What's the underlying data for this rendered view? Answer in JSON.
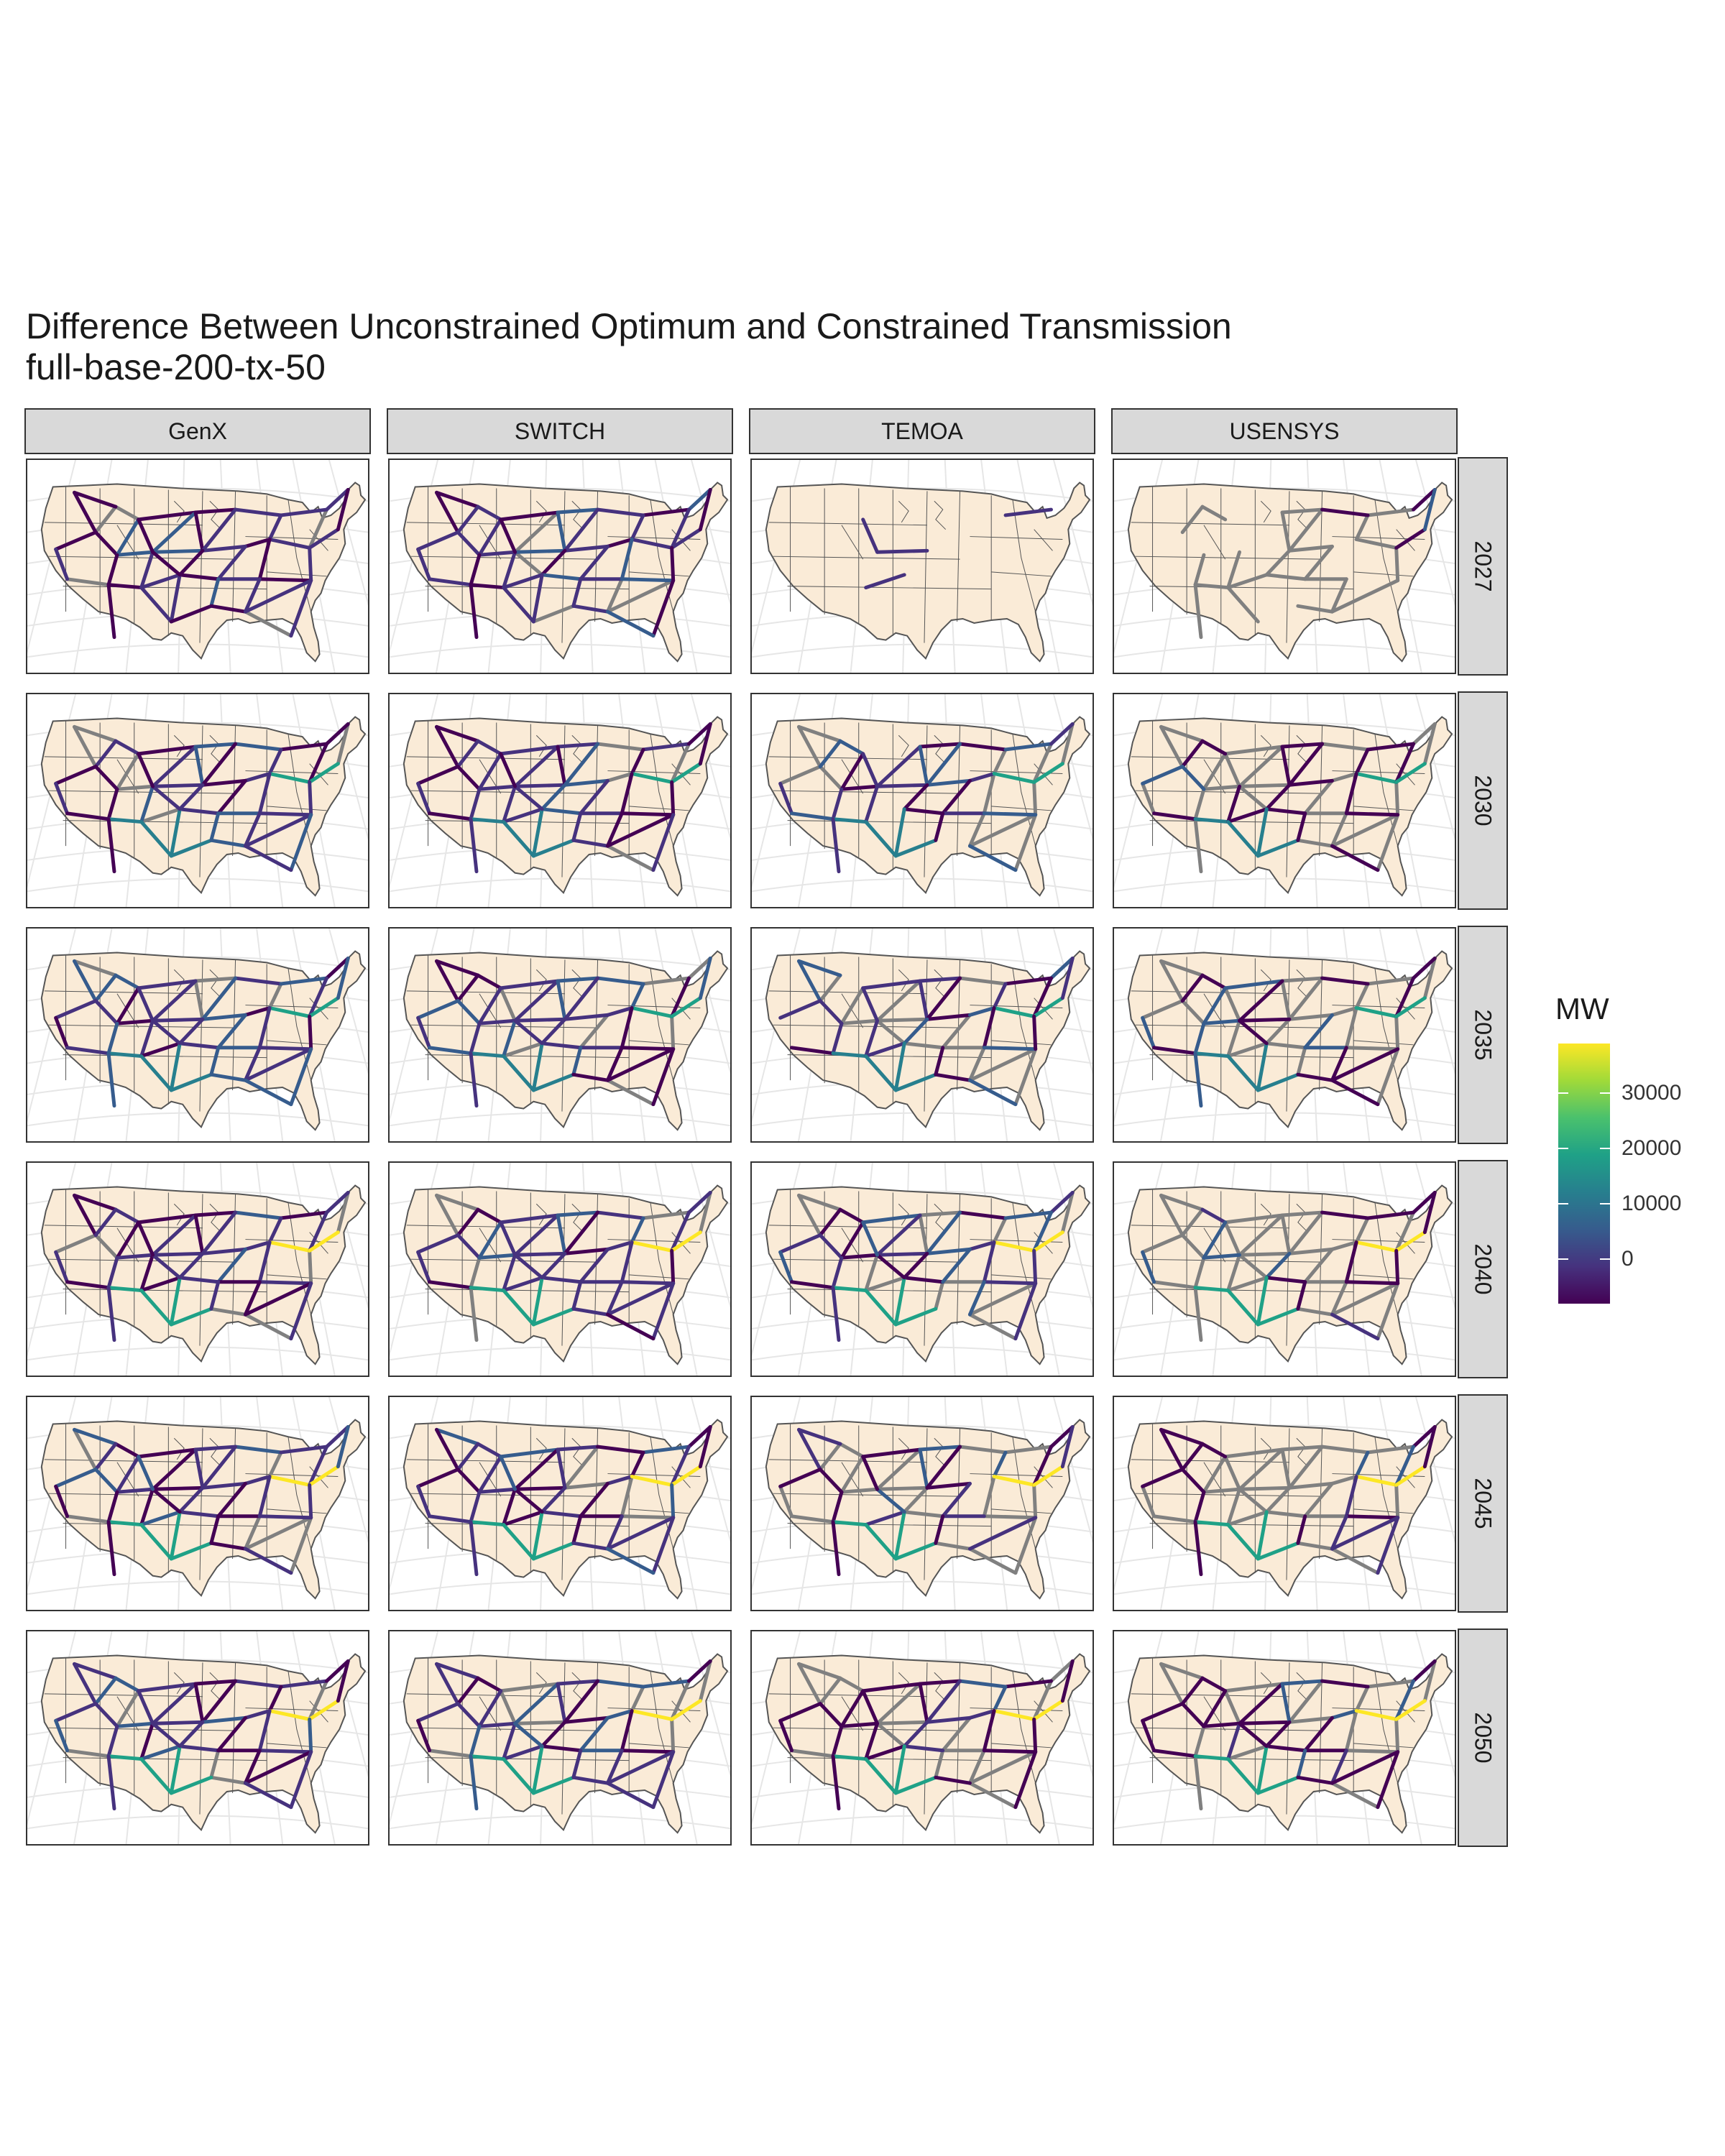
{
  "title": "Difference Between Unconstrained Optimum and Constrained Transmission",
  "subtitle": "full-base-200-tx-50",
  "columns": [
    "GenX",
    "SWITCH",
    "TEMOA",
    "USENSYS"
  ],
  "rows": [
    "2027",
    "2030",
    "2035",
    "2040",
    "2045",
    "2050"
  ],
  "legend": {
    "title": "MW",
    "ticks": [
      "30000",
      "20000",
      "10000",
      "0"
    ],
    "colorscale": [
      "#440154",
      "#46327e",
      "#365c8d",
      "#277f8e",
      "#1fa187",
      "#4ac16d",
      "#a0da39",
      "#fde725"
    ],
    "range": [
      -8000,
      39000
    ],
    "tick_values": [
      30000,
      20000,
      10000,
      0
    ]
  },
  "colors": {
    "land": "#faebd7",
    "border": "#555555",
    "grid": "#e6e6e6",
    "no_data": "#808080"
  }
}
